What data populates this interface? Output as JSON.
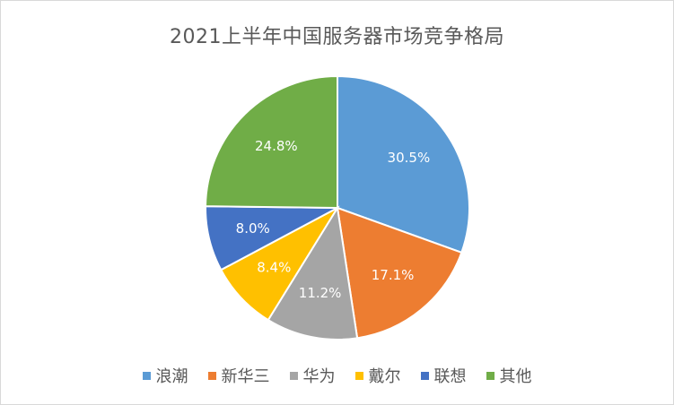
{
  "chart_data": {
    "type": "pie",
    "title": "2021上半年中国服务器市场竞争格局",
    "categories": [
      "浪潮",
      "新华三",
      "华为",
      "戴尔",
      "联想",
      "其他"
    ],
    "values": [
      30.5,
      17.1,
      11.2,
      8.4,
      8.0,
      24.8
    ],
    "data_labels": [
      "30.5%",
      "17.1%",
      "11.2%",
      "8.4%",
      "8.0%",
      "24.8%"
    ],
    "colors": [
      "#5b9bd5",
      "#ed7d31",
      "#a5a5a5",
      "#ffc000",
      "#4472c4",
      "#70ad47"
    ],
    "legend_position": "bottom"
  }
}
